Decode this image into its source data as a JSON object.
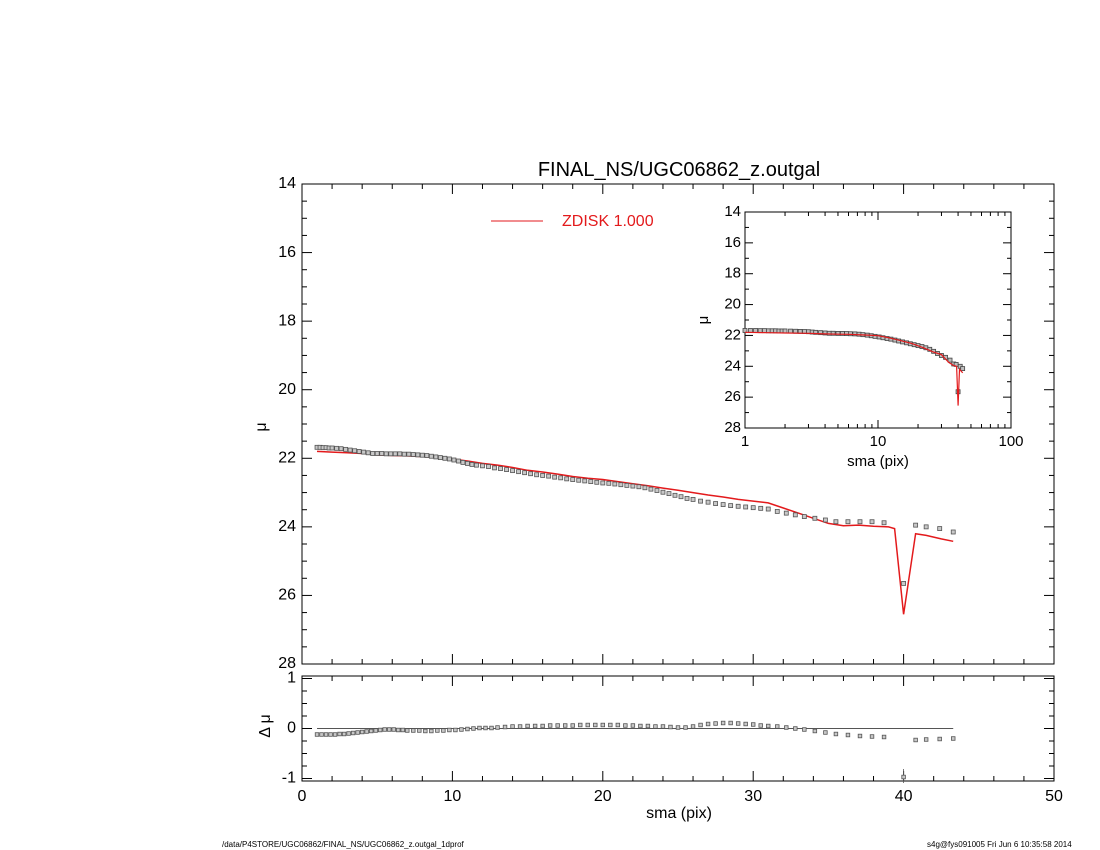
{
  "footer": {
    "left": "/data/P4STORE/UGC06862/FINAL_NS/UGC06862_z.outgal_1dprof",
    "right": "s4g@fys091005  Fri Jun  6 10:35:58 2014"
  },
  "colors": {
    "model": "#e31a1c",
    "data": "#555555",
    "axes": "#000000"
  },
  "chart_data": [
    {
      "id": "main",
      "type": "scatter",
      "title": "FINAL_NS/UGC06862_z.outgal",
      "xlabel": "",
      "ylabel": "μ",
      "xlim": [
        0,
        50
      ],
      "ylim": [
        28,
        14
      ],
      "y_inverted": true,
      "xticks": [
        0,
        10,
        20,
        30,
        40,
        50
      ],
      "yticks": [
        14,
        16,
        18,
        20,
        22,
        24,
        26,
        28
      ],
      "legend": {
        "placement": "top-center",
        "entries": [
          {
            "label": "ZDISK  1.000",
            "color": "#e31a1c"
          }
        ]
      },
      "series": [
        {
          "name": "ZDISK  1.000",
          "kind": "line",
          "x": [
            1.0,
            2.0,
            3.0,
            4.0,
            5.0,
            6.0,
            7.0,
            8.0,
            9.0,
            10.0,
            11.0,
            12.0,
            13.0,
            14.0,
            15.0,
            16.0,
            17.0,
            18.0,
            19.0,
            20.0,
            21.0,
            22.0,
            23.0,
            24.0,
            25.0,
            26.0,
            27.0,
            28.0,
            29.0,
            30.0,
            31.0,
            32.0,
            33.0,
            34.0,
            35.0,
            36.0,
            37.0,
            38.0,
            39.0,
            39.4,
            40.0,
            40.8,
            41.5,
            42.5,
            43.3
          ],
          "y": [
            21.8,
            21.82,
            21.84,
            21.86,
            21.9,
            21.92,
            21.93,
            21.95,
            21.98,
            22.02,
            22.08,
            22.15,
            22.2,
            22.27,
            22.35,
            22.4,
            22.46,
            22.53,
            22.58,
            22.62,
            22.68,
            22.74,
            22.8,
            22.87,
            22.93,
            23.0,
            23.07,
            23.13,
            23.2,
            23.25,
            23.3,
            23.45,
            23.6,
            23.75,
            23.9,
            23.97,
            23.95,
            23.98,
            24.0,
            24.05,
            26.55,
            24.2,
            24.25,
            24.35,
            24.42
          ]
        },
        {
          "name": "",
          "kind": "points",
          "x": [
            1.0,
            1.2,
            1.4,
            1.6,
            1.8,
            2.0,
            2.3,
            2.6,
            2.9,
            3.2,
            3.5,
            3.8,
            4.1,
            4.4,
            4.7,
            5.0,
            5.3,
            5.6,
            5.9,
            6.2,
            6.5,
            6.8,
            7.1,
            7.4,
            7.7,
            8.0,
            8.3,
            8.6,
            8.9,
            9.2,
            9.5,
            9.8,
            10.1,
            10.4,
            10.7,
            11.0,
            11.3,
            11.6,
            12.0,
            12.4,
            12.8,
            13.2,
            13.6,
            14.0,
            14.4,
            14.8,
            15.2,
            15.6,
            16.0,
            16.4,
            16.8,
            17.2,
            17.6,
            18.0,
            18.4,
            18.8,
            19.2,
            19.6,
            20.0,
            20.4,
            20.8,
            21.2,
            21.6,
            22.0,
            22.4,
            22.8,
            23.2,
            23.6,
            24.0,
            24.4,
            24.8,
            25.2,
            25.6,
            26.0,
            26.5,
            27.0,
            27.5,
            28.0,
            28.5,
            29.0,
            29.5,
            30.0,
            30.5,
            31.0,
            31.6,
            32.2,
            32.8,
            33.4,
            34.1,
            34.8,
            35.5,
            36.3,
            37.1,
            37.9,
            38.7,
            40.0,
            40.8,
            41.5,
            42.4,
            43.3
          ],
          "y": [
            21.68,
            21.68,
            21.69,
            21.69,
            21.7,
            21.7,
            21.71,
            21.72,
            21.74,
            21.76,
            21.78,
            21.8,
            21.82,
            21.84,
            21.86,
            21.86,
            21.86,
            21.87,
            21.87,
            21.87,
            21.87,
            21.88,
            21.88,
            21.89,
            21.9,
            21.91,
            21.92,
            21.94,
            21.96,
            21.98,
            22.0,
            22.02,
            22.05,
            22.08,
            22.12,
            22.15,
            22.18,
            22.2,
            22.22,
            22.24,
            22.28,
            22.3,
            22.33,
            22.36,
            22.39,
            22.42,
            22.45,
            22.48,
            22.5,
            22.52,
            22.55,
            22.57,
            22.6,
            22.62,
            22.64,
            22.66,
            22.68,
            22.7,
            22.72,
            22.73,
            22.75,
            22.77,
            22.79,
            22.81,
            22.83,
            22.86,
            22.9,
            22.94,
            22.99,
            23.03,
            23.08,
            23.12,
            23.17,
            23.2,
            23.25,
            23.28,
            23.32,
            23.35,
            23.38,
            23.4,
            23.42,
            23.44,
            23.46,
            23.48,
            23.55,
            23.6,
            23.65,
            23.7,
            23.75,
            23.8,
            23.85,
            23.85,
            23.85,
            23.85,
            23.88,
            25.65,
            23.95,
            24.0,
            24.05,
            24.15
          ]
        }
      ]
    },
    {
      "id": "residual",
      "type": "scatter",
      "xlabel": "sma (pix)",
      "ylabel": "Δ μ",
      "xlim": [
        0,
        50
      ],
      "ylim": [
        -1.05,
        1.05
      ],
      "xticks": [
        0,
        10,
        20,
        30,
        40,
        50
      ],
      "yticks": [
        -1,
        0,
        1
      ],
      "zero_line_x": [
        1.0,
        43.3
      ],
      "series": [
        {
          "name": "",
          "kind": "points",
          "x": [
            1.0,
            1.3,
            1.6,
            1.9,
            2.2,
            2.5,
            2.8,
            3.1,
            3.4,
            3.7,
            4.0,
            4.3,
            4.6,
            4.9,
            5.2,
            5.5,
            5.8,
            6.1,
            6.4,
            6.7,
            7.0,
            7.4,
            7.8,
            8.2,
            8.6,
            9.0,
            9.4,
            9.8,
            10.2,
            10.6,
            11.0,
            11.4,
            11.8,
            12.2,
            12.6,
            13.0,
            13.5,
            14.0,
            14.5,
            15.0,
            15.5,
            16.0,
            16.5,
            17.0,
            17.5,
            18.0,
            18.5,
            19.0,
            19.5,
            20.0,
            20.5,
            21.0,
            21.5,
            22.0,
            22.5,
            23.0,
            23.5,
            24.0,
            24.5,
            25.0,
            25.5,
            26.0,
            26.5,
            27.0,
            27.5,
            28.0,
            28.5,
            29.0,
            29.5,
            30.0,
            30.5,
            31.0,
            31.6,
            32.2,
            32.8,
            33.4,
            34.1,
            34.8,
            35.5,
            36.3,
            37.1,
            37.9,
            38.7,
            40.0,
            40.8,
            41.5,
            42.4,
            43.3
          ],
          "y": [
            -0.12,
            -0.12,
            -0.12,
            -0.12,
            -0.12,
            -0.11,
            -0.11,
            -0.1,
            -0.09,
            -0.08,
            -0.07,
            -0.06,
            -0.05,
            -0.04,
            -0.03,
            -0.02,
            -0.02,
            -0.02,
            -0.03,
            -0.03,
            -0.04,
            -0.04,
            -0.04,
            -0.05,
            -0.05,
            -0.04,
            -0.04,
            -0.03,
            -0.03,
            -0.02,
            -0.01,
            0.0,
            0.01,
            0.01,
            0.01,
            0.02,
            0.03,
            0.04,
            0.04,
            0.05,
            0.05,
            0.05,
            0.06,
            0.06,
            0.06,
            0.06,
            0.07,
            0.07,
            0.07,
            0.07,
            0.07,
            0.07,
            0.06,
            0.06,
            0.05,
            0.05,
            0.04,
            0.04,
            0.03,
            0.02,
            0.02,
            0.04,
            0.07,
            0.09,
            0.1,
            0.11,
            0.11,
            0.1,
            0.09,
            0.08,
            0.06,
            0.05,
            0.04,
            0.02,
            0.0,
            -0.02,
            -0.05,
            -0.08,
            -0.11,
            -0.13,
            -0.15,
            -0.16,
            -0.17,
            -0.97,
            -0.23,
            -0.22,
            -0.21,
            -0.2
          ]
        }
      ]
    },
    {
      "id": "inset",
      "type": "scatter",
      "xlabel": "sma (pix)",
      "ylabel": "μ",
      "x_scale": "log",
      "xlim": [
        1,
        100
      ],
      "ylim": [
        28,
        14
      ],
      "y_inverted": true,
      "xticks": [
        1,
        10,
        100
      ],
      "xtick_labels": [
        "1",
        "10",
        "100"
      ],
      "yticks": [
        14,
        16,
        18,
        20,
        22,
        24,
        26,
        28
      ],
      "series": [
        {
          "name": "",
          "kind": "line",
          "x": [
            1.0,
            1.5,
            2.0,
            3.0,
            4.0,
            5.0,
            6.0,
            8.0,
            10.0,
            12.0,
            15.0,
            18.0,
            22.0,
            26.0,
            30.0,
            34.0,
            37.0,
            39.0,
            40.0,
            41.0,
            43.3
          ],
          "y": [
            21.8,
            21.82,
            21.84,
            21.86,
            21.9,
            21.92,
            21.93,
            21.97,
            22.02,
            22.15,
            22.35,
            22.53,
            22.8,
            23.07,
            23.25,
            23.75,
            23.95,
            24.0,
            26.55,
            24.2,
            24.42
          ]
        },
        {
          "name": "",
          "kind": "points",
          "x": [
            1.0,
            1.1,
            1.2,
            1.3,
            1.4,
            1.5,
            1.6,
            1.7,
            1.8,
            1.9,
            2.0,
            2.2,
            2.4,
            2.6,
            2.8,
            3.0,
            3.2,
            3.4,
            3.7,
            4.0,
            4.3,
            4.6,
            5.0,
            5.4,
            5.8,
            6.2,
            6.7,
            7.2,
            7.7,
            8.3,
            8.9,
            9.5,
            10.2,
            10.9,
            11.7,
            12.5,
            13.4,
            14.3,
            15.3,
            16.4,
            17.5,
            18.7,
            20.0,
            21.4,
            22.9,
            24.5,
            26.2,
            28.0,
            30.0,
            32.2,
            34.8,
            37.1,
            38.7,
            40.0,
            41.5,
            43.3
          ],
          "y": [
            21.68,
            21.68,
            21.68,
            21.69,
            21.69,
            21.7,
            21.7,
            21.7,
            21.71,
            21.71,
            21.71,
            21.72,
            21.73,
            21.74,
            21.75,
            21.76,
            21.78,
            21.8,
            21.82,
            21.84,
            21.86,
            21.86,
            21.87,
            21.87,
            21.88,
            21.89,
            21.9,
            21.92,
            21.95,
            21.98,
            22.02,
            22.06,
            22.1,
            22.15,
            22.2,
            22.24,
            22.3,
            22.36,
            22.42,
            22.48,
            22.54,
            22.6,
            22.66,
            22.72,
            22.8,
            22.9,
            23.03,
            23.17,
            23.3,
            23.42,
            23.6,
            23.85,
            23.88,
            25.65,
            24.0,
            24.15
          ]
        }
      ]
    }
  ]
}
